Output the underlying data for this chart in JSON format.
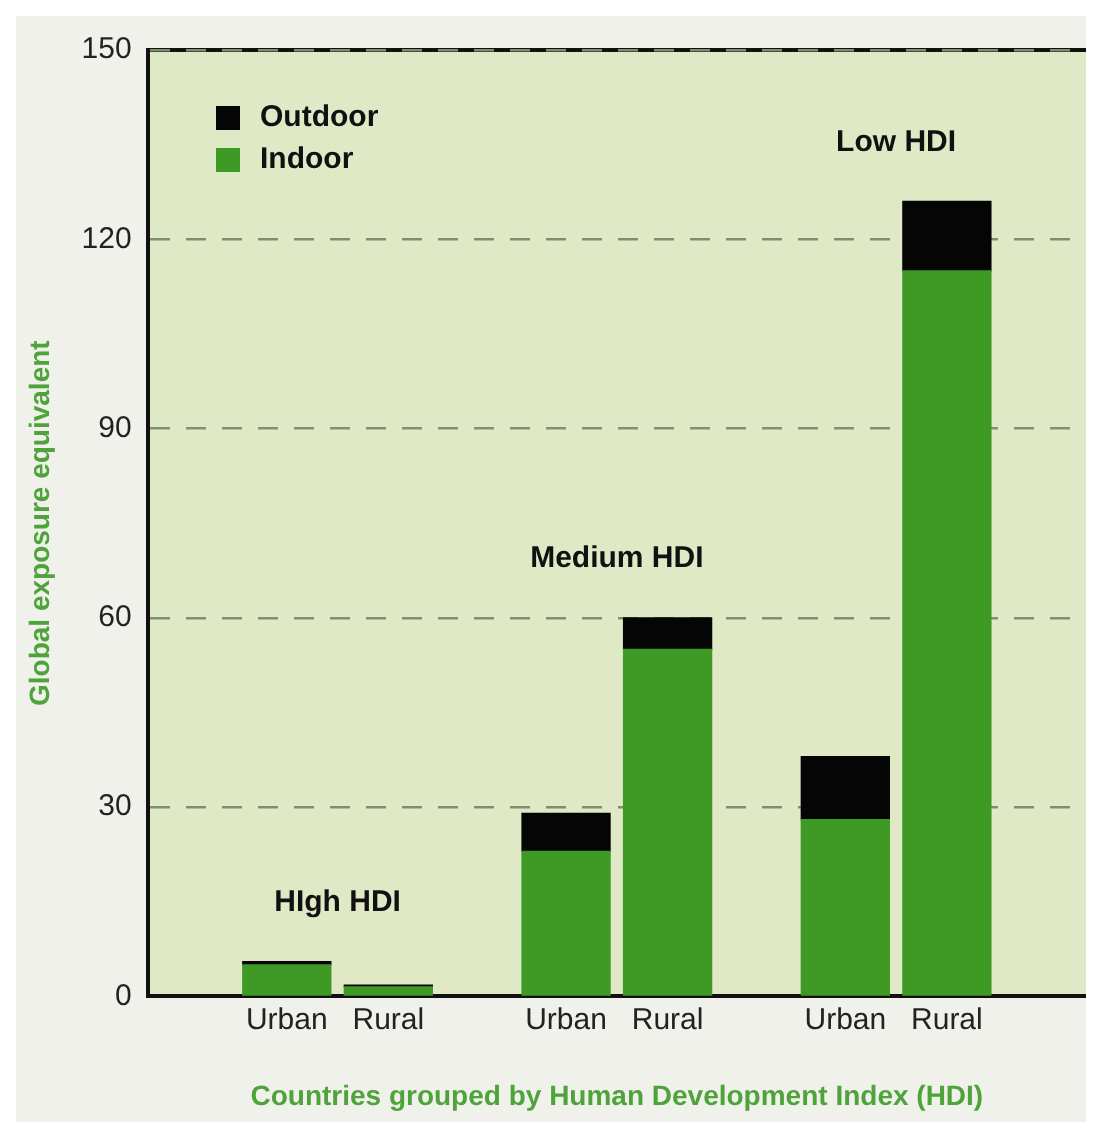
{
  "chart_data": {
    "type": "bar",
    "stacked": true,
    "xlabel": "Countries grouped by Human Development Index (HDI)",
    "ylabel": "Global exposure equivalent",
    "categories": [
      "Urban",
      "Rural",
      "Urban",
      "Rural",
      "Urban",
      "Rural"
    ],
    "series": [
      {
        "name": "Indoor",
        "color": "#3f9a25",
        "values": [
          5,
          1.5,
          23,
          55,
          28,
          115
        ]
      },
      {
        "name": "Outdoor",
        "color": "#050505",
        "values": [
          0.5,
          0.3,
          6,
          5,
          10,
          11
        ]
      }
    ],
    "annotations": [
      "HIgh HDI",
      "Medium HDI",
      "Low HDI"
    ],
    "ylim": [
      0,
      150
    ],
    "yticks": [
      0,
      30,
      60,
      90,
      120,
      150
    ],
    "grid": "y",
    "legend": "top left"
  }
}
